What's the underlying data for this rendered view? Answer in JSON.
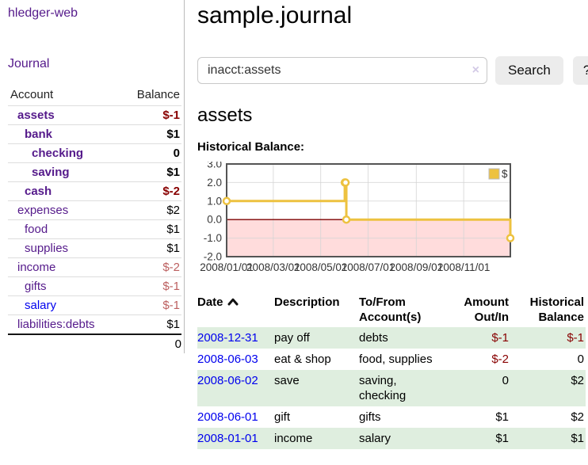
{
  "sidebar": {
    "app_title": "hledger-web",
    "nav": {
      "journal_label": "Journal"
    },
    "accounts_table": {
      "headers": {
        "account": "Account",
        "balance": "Balance"
      },
      "rows": [
        {
          "label": "assets",
          "balance": "$-1",
          "indent": 1,
          "emphasized": true,
          "link_color": "purple",
          "balance_tone": "neg"
        },
        {
          "label": "bank",
          "balance": "$1",
          "indent": 2,
          "emphasized": true,
          "link_color": "purple",
          "balance_tone": "plain"
        },
        {
          "label": "checking",
          "balance": "0",
          "indent": 3,
          "emphasized": true,
          "link_color": "purple",
          "balance_tone": "plain"
        },
        {
          "label": "saving",
          "balance": "$1",
          "indent": 3,
          "emphasized": true,
          "link_color": "purple",
          "balance_tone": "plain"
        },
        {
          "label": "cash",
          "balance": "$-2",
          "indent": 2,
          "emphasized": true,
          "link_color": "purple",
          "balance_tone": "neg"
        },
        {
          "label": "expenses",
          "balance": "$2",
          "indent": 1,
          "emphasized": false,
          "link_color": "purple",
          "balance_tone": "plain"
        },
        {
          "label": "food",
          "balance": "$1",
          "indent": 2,
          "emphasized": false,
          "link_color": "purple",
          "balance_tone": "plain"
        },
        {
          "label": "supplies",
          "balance": "$1",
          "indent": 2,
          "emphasized": false,
          "link_color": "purple",
          "balance_tone": "plain"
        },
        {
          "label": "income",
          "balance": "$-2",
          "indent": 1,
          "emphasized": false,
          "link_color": "purple",
          "balance_tone": "neg-soft"
        },
        {
          "label": "gifts",
          "balance": "$-1",
          "indent": 2,
          "emphasized": false,
          "link_color": "purple",
          "balance_tone": "neg-soft"
        },
        {
          "label": "salary",
          "balance": "$-1",
          "indent": 2,
          "emphasized": false,
          "link_color": "blue",
          "balance_tone": "neg-soft"
        },
        {
          "label": "liabilities:debts",
          "balance": "$1",
          "indent": 1,
          "emphasized": false,
          "link_color": "purple",
          "balance_tone": "plain"
        }
      ],
      "total": "0"
    }
  },
  "header": {
    "title": "sample.journal"
  },
  "search": {
    "value": "inacct:assets",
    "clear_icon": "×",
    "button_label": "Search",
    "help_label": "?"
  },
  "account_page": {
    "title": "assets",
    "chart_label": "Historical Balance:"
  },
  "chart_data": {
    "type": "line",
    "step": true,
    "title": "Historical Balance:",
    "legend": "$",
    "legend_position": "top-right",
    "grid": true,
    "xrange": [
      "2008-01-01",
      "2008-12-31"
    ],
    "ylim": [
      -2,
      3
    ],
    "yticks": [
      "3.0",
      "2.0",
      "1.0",
      "0.0",
      "-1.0",
      "-2.0"
    ],
    "ytick_values": [
      3,
      2,
      1,
      0,
      -1,
      -2
    ],
    "xticks": [
      "2008/01/01",
      "2008/03/01",
      "2008/05/01",
      "2008/07/01",
      "2008/09/01",
      "2008/11/01"
    ],
    "series": [
      {
        "name": "$",
        "color": "#edc240",
        "points": [
          [
            "2008-01-01",
            1
          ],
          [
            "2008-06-01",
            2
          ],
          [
            "2008-06-02",
            2
          ],
          [
            "2008-06-03",
            0
          ],
          [
            "2008-12-31",
            -1
          ]
        ]
      }
    ],
    "negative_region_color": "#ffdcdc",
    "zero_line_color": "#7f0000",
    "border_color": "#545454",
    "grid_color": "#d4d4d4"
  },
  "register_table": {
    "headers": [
      "Date",
      "Description",
      "To/From Account(s)",
      "Amount Out/In",
      "Historical Balance"
    ],
    "sort_icon": "chevron-up",
    "rows": [
      {
        "date": "2008-12-31",
        "description": "pay off",
        "accounts": "debts",
        "amount": "$-1",
        "balance": "$-1",
        "amount_negative": true,
        "balance_negative": true
      },
      {
        "date": "2008-06-03",
        "description": "eat & shop",
        "accounts": "food, supplies",
        "amount": "$-2",
        "balance": "0",
        "amount_negative": true,
        "balance_negative": false
      },
      {
        "date": "2008-06-02",
        "description": "save",
        "accounts": "saving, checking",
        "amount": "0",
        "balance": "$2",
        "amount_negative": false,
        "balance_negative": false
      },
      {
        "date": "2008-06-01",
        "description": "gift",
        "accounts": "gifts",
        "amount": "$1",
        "balance": "$2",
        "amount_negative": false,
        "balance_negative": false
      },
      {
        "date": "2008-01-01",
        "description": "income",
        "accounts": "salary",
        "amount": "$1",
        "balance": "$1",
        "amount_negative": false,
        "balance_negative": false
      }
    ]
  },
  "colors": {
    "link_purple": "#551a8b",
    "link_blue": "#0000ee",
    "negative": "#880000",
    "negative_soft": "#bc5f5f",
    "row_green": "#dfeedf",
    "series_gold": "#edc240",
    "negative_region": "#ffdcdc",
    "button_bg": "#ececec"
  }
}
